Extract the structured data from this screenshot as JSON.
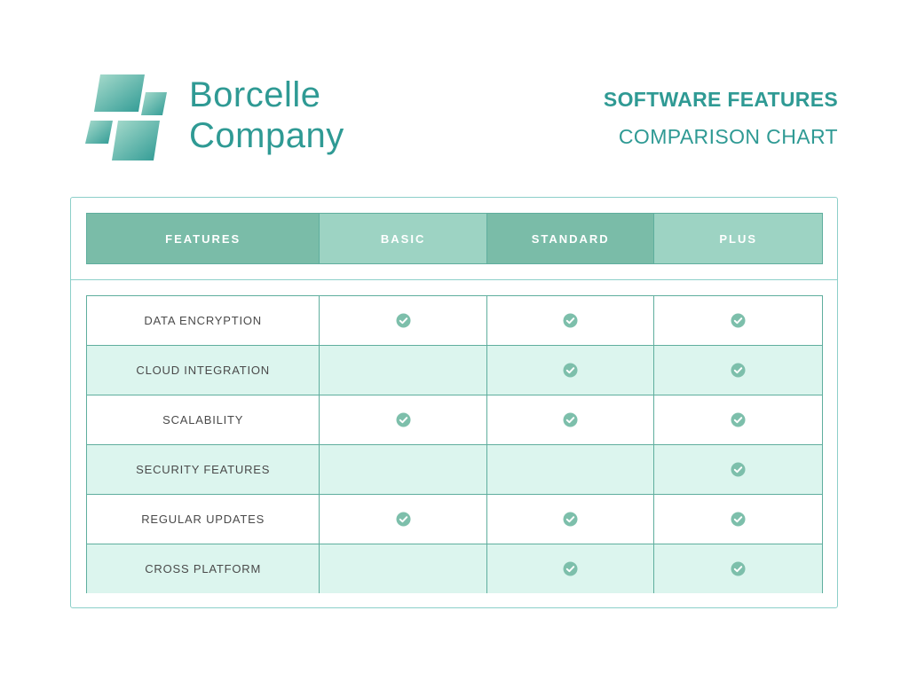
{
  "brand": {
    "name_line1": "Borcelle",
    "name_line2": "Company",
    "logo_icon": "tiled-squares-logo-icon",
    "color": "#2f9a94"
  },
  "document": {
    "title": "SOFTWARE FEATURES",
    "subtitle": "COMPARISON CHART"
  },
  "table": {
    "headers": [
      "FEATURES",
      "BASIC",
      "STANDARD",
      "PLUS"
    ],
    "rows": [
      {
        "feature": "DATA ENCRYPTION",
        "basic": true,
        "standard": true,
        "plus": true
      },
      {
        "feature": "CLOUD INTEGRATION",
        "basic": false,
        "standard": true,
        "plus": true
      },
      {
        "feature": "SCALABILITY",
        "basic": true,
        "standard": true,
        "plus": true
      },
      {
        "feature": "SECURITY FEATURES",
        "basic": false,
        "standard": false,
        "plus": true
      },
      {
        "feature": "REGULAR UPDATES",
        "basic": true,
        "standard": true,
        "plus": true
      },
      {
        "feature": "CROSS PLATFORM",
        "basic": false,
        "standard": true,
        "plus": true
      }
    ],
    "check_icon": "check-circle-icon",
    "colors": {
      "header_dark": "#7abca8",
      "header_light": "#9dd3c3",
      "row_alt": "#dcf5ee",
      "check": "#7dbfab"
    }
  }
}
